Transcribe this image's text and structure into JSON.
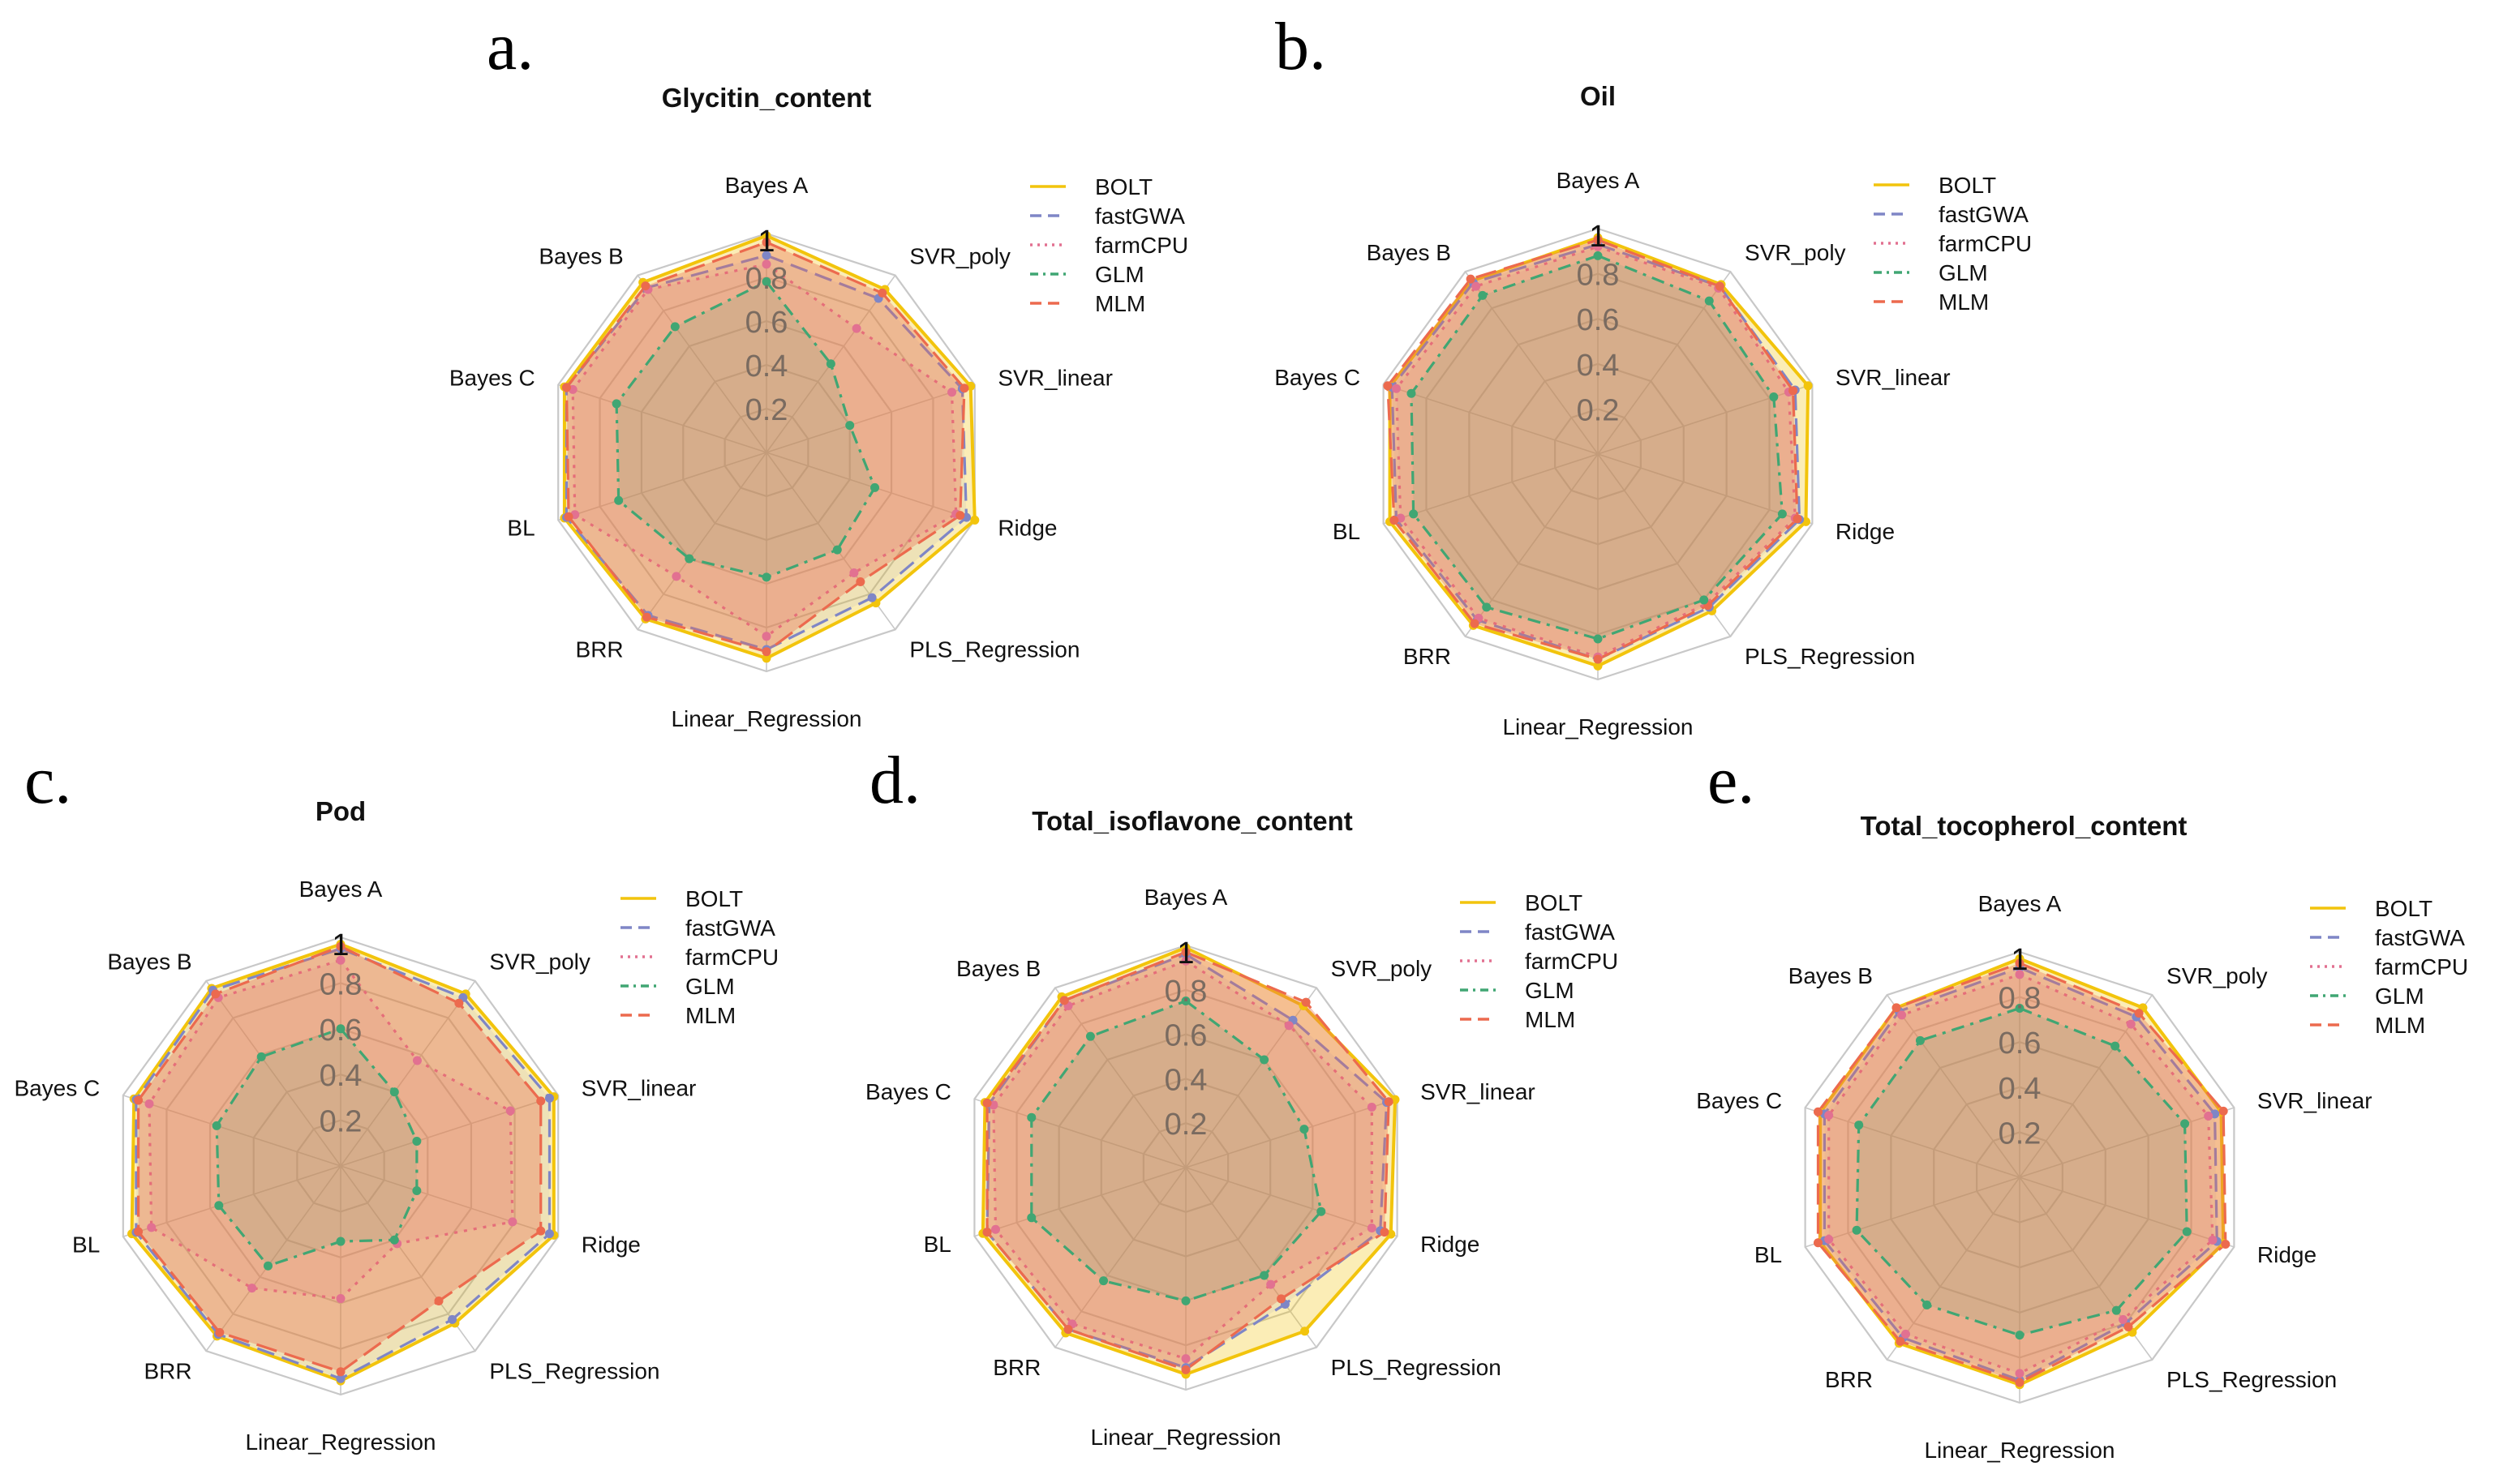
{
  "colors": {
    "BOLT": "#f2c40c",
    "fastGWA": "#7f86c6",
    "farmCPU": "#e27191",
    "GLM": "#40a673",
    "MLM": "#ec6a4e",
    "grid": "#c8c8c8"
  },
  "chart_data": [
    {
      "panel": "a.",
      "type": "radar",
      "title": "Glycitin_content",
      "axes": [
        "Bayes A",
        "SVR_poly",
        "SVR_linear",
        "Ridge",
        "PLS_Regression",
        "Linear_Regression",
        "BRR",
        "BL",
        "Bayes C",
        "Bayes B"
      ],
      "ticks": [
        "0.2",
        "0.4",
        "0.6",
        "0.8",
        "1"
      ],
      "range": [
        0,
        1
      ],
      "series": [
        {
          "name": "BOLT",
          "values": [
            0.99,
            0.92,
            0.98,
            1.0,
            0.85,
            0.94,
            0.94,
            0.97,
            0.97,
            0.96
          ]
        },
        {
          "name": "fastGWA",
          "values": [
            0.9,
            0.87,
            0.94,
            0.96,
            0.82,
            0.9,
            0.92,
            0.96,
            0.96,
            0.93
          ]
        },
        {
          "name": "farmCPU",
          "values": [
            0.86,
            0.7,
            0.89,
            0.91,
            0.68,
            0.84,
            0.7,
            0.92,
            0.93,
            0.92
          ]
        },
        {
          "name": "GLM",
          "values": [
            0.78,
            0.5,
            0.4,
            0.52,
            0.55,
            0.57,
            0.6,
            0.71,
            0.72,
            0.71
          ]
        },
        {
          "name": "MLM",
          "values": [
            0.96,
            0.9,
            0.95,
            0.93,
            0.73,
            0.91,
            0.93,
            0.95,
            0.96,
            0.94
          ]
        }
      ],
      "legend": [
        "BOLT",
        "fastGWA",
        "farmCPU",
        "GLM",
        "MLM"
      ]
    },
    {
      "panel": "b.",
      "type": "radar",
      "title": "Oil",
      "axes": [
        "Bayes A",
        "SVR_poly",
        "SVR_linear",
        "Ridge",
        "PLS_Regression",
        "Linear_Regression",
        "BRR",
        "BL",
        "Bayes C",
        "Bayes B"
      ],
      "ticks": [
        "0.2",
        "0.4",
        "0.6",
        "0.8",
        "1"
      ],
      "range": [
        0,
        1
      ],
      "series": [
        {
          "name": "BOLT",
          "values": [
            0.96,
            0.93,
            0.98,
            0.97,
            0.86,
            0.94,
            0.94,
            0.97,
            0.97,
            0.95
          ]
        },
        {
          "name": "fastGWA",
          "values": [
            0.93,
            0.92,
            0.92,
            0.94,
            0.84,
            0.91,
            0.91,
            0.94,
            0.96,
            0.94
          ]
        },
        {
          "name": "farmCPU",
          "values": [
            0.92,
            0.91,
            0.89,
            0.92,
            0.82,
            0.9,
            0.9,
            0.92,
            0.94,
            0.92
          ]
        },
        {
          "name": "GLM",
          "values": [
            0.88,
            0.84,
            0.82,
            0.86,
            0.8,
            0.82,
            0.84,
            0.86,
            0.87,
            0.87
          ]
        },
        {
          "name": "MLM",
          "values": [
            0.95,
            0.92,
            0.91,
            0.93,
            0.83,
            0.91,
            0.93,
            0.95,
            0.98,
            0.96
          ]
        }
      ],
      "legend": [
        "BOLT",
        "fastGWA",
        "farmCPU",
        "GLM",
        "MLM"
      ]
    },
    {
      "panel": "c.",
      "type": "radar",
      "title": "Pod",
      "axes": [
        "Bayes A",
        "SVR_poly",
        "SVR_linear",
        "Ridge",
        "PLS_Regression",
        "Linear_Regression",
        "BRR",
        "BL",
        "Bayes C",
        "Bayes B"
      ],
      "ticks": [
        "0.2",
        "0.4",
        "0.6",
        "0.8",
        "1"
      ],
      "range": [
        0,
        1
      ],
      "series": [
        {
          "name": "BOLT",
          "values": [
            0.97,
            0.93,
            0.98,
            0.98,
            0.85,
            0.94,
            0.92,
            0.96,
            0.95,
            0.96
          ]
        },
        {
          "name": "fastGWA",
          "values": [
            0.95,
            0.91,
            0.96,
            0.96,
            0.83,
            0.93,
            0.91,
            0.94,
            0.94,
            0.95
          ]
        },
        {
          "name": "farmCPU",
          "values": [
            0.9,
            0.57,
            0.78,
            0.79,
            0.42,
            0.58,
            0.66,
            0.87,
            0.88,
            0.91
          ]
        },
        {
          "name": "GLM",
          "values": [
            0.6,
            0.4,
            0.35,
            0.35,
            0.4,
            0.33,
            0.54,
            0.56,
            0.57,
            0.59
          ]
        },
        {
          "name": "MLM",
          "values": [
            0.96,
            0.88,
            0.92,
            0.92,
            0.73,
            0.9,
            0.9,
            0.93,
            0.93,
            0.93
          ]
        }
      ],
      "legend": [
        "BOLT",
        "fastGWA",
        "farmCPU",
        "GLM",
        "MLM"
      ]
    },
    {
      "panel": "d.",
      "type": "radar",
      "title": "Total_isoflavone_content",
      "axes": [
        "Bayes A",
        "SVR_poly",
        "SVR_linear",
        "Ridge",
        "PLS_Regression",
        "Linear_Regression",
        "BRR",
        "BL",
        "Bayes C",
        "Bayes B"
      ],
      "ticks": [
        "0.2",
        "0.4",
        "0.6",
        "0.8",
        "1"
      ],
      "range": [
        0,
        1
      ],
      "series": [
        {
          "name": "BOLT",
          "values": [
            0.99,
            0.9,
            0.99,
            0.97,
            0.91,
            0.93,
            0.92,
            0.96,
            0.95,
            0.95
          ]
        },
        {
          "name": "fastGWA",
          "values": [
            0.96,
            0.82,
            0.95,
            0.92,
            0.76,
            0.9,
            0.9,
            0.94,
            0.93,
            0.93
          ]
        },
        {
          "name": "farmCPU",
          "values": [
            0.93,
            0.79,
            0.88,
            0.88,
            0.65,
            0.86,
            0.87,
            0.9,
            0.91,
            0.9
          ]
        },
        {
          "name": "GLM",
          "values": [
            0.75,
            0.6,
            0.56,
            0.64,
            0.6,
            0.6,
            0.63,
            0.73,
            0.73,
            0.73
          ]
        },
        {
          "name": "MLM",
          "values": [
            0.97,
            0.92,
            0.96,
            0.94,
            0.73,
            0.91,
            0.9,
            0.94,
            0.94,
            0.93
          ]
        }
      ],
      "legend": [
        "BOLT",
        "fastGWA",
        "farmCPU",
        "GLM",
        "MLM"
      ]
    },
    {
      "panel": "e.",
      "type": "radar",
      "title": "Total_tocopherol_content",
      "axes": [
        "Bayes A",
        "SVR_poly",
        "SVR_linear",
        "Ridge",
        "PLS_Regression",
        "Linear_Regression",
        "BRR",
        "BL",
        "Bayes C",
        "Bayes B"
      ],
      "ticks": [
        "0.2",
        "0.4",
        "0.6",
        "0.8",
        "1"
      ],
      "range": [
        0,
        1
      ],
      "series": [
        {
          "name": "BOLT",
          "values": [
            0.97,
            0.93,
            0.94,
            0.95,
            0.85,
            0.92,
            0.91,
            0.93,
            0.93,
            0.93
          ]
        },
        {
          "name": "fastGWA",
          "values": [
            0.93,
            0.88,
            0.91,
            0.92,
            0.8,
            0.9,
            0.88,
            0.91,
            0.91,
            0.91
          ]
        },
        {
          "name": "farmCPU",
          "values": [
            0.9,
            0.84,
            0.88,
            0.9,
            0.78,
            0.87,
            0.86,
            0.89,
            0.89,
            0.89
          ]
        },
        {
          "name": "GLM",
          "values": [
            0.75,
            0.72,
            0.77,
            0.78,
            0.73,
            0.7,
            0.7,
            0.76,
            0.75,
            0.75
          ]
        },
        {
          "name": "MLM",
          "values": [
            0.95,
            0.9,
            0.95,
            0.96,
            0.82,
            0.91,
            0.9,
            0.94,
            0.94,
            0.93
          ]
        }
      ],
      "legend": [
        "BOLT",
        "fastGWA",
        "farmCPU",
        "GLM",
        "MLM"
      ]
    }
  ]
}
